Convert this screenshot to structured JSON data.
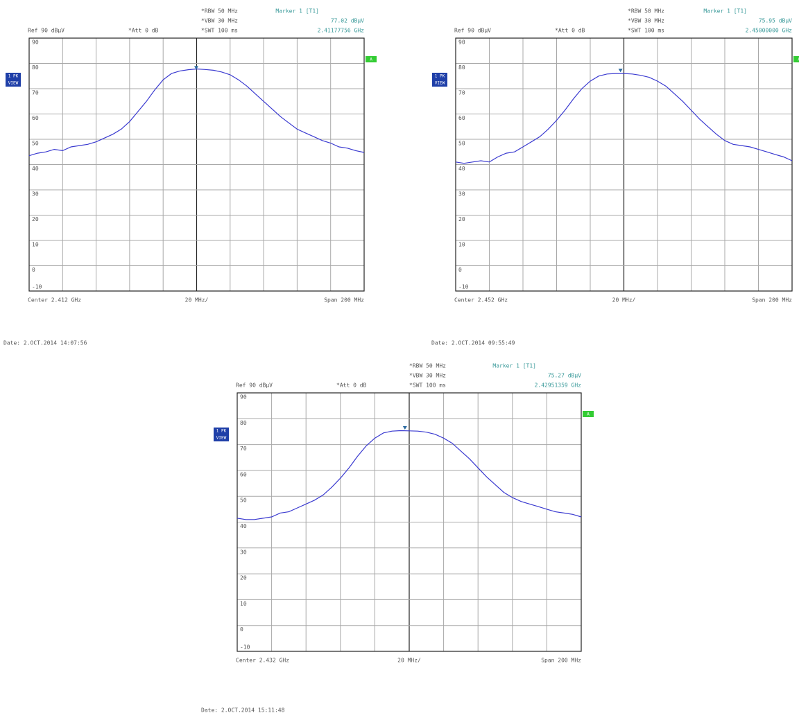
{
  "chart_data": [
    {
      "type": "line",
      "settings": [
        "*RBW 50 MHz",
        "*VBW 30 MHz",
        "*SWT 100 ms"
      ],
      "ref": "Ref  90 dBµV",
      "att": "*Att  0 dB",
      "marker": {
        "name": "Marker 1 [T1]",
        "value": 77.02,
        "value_label": "77.02 dBµV",
        "x": 2.41177756,
        "x_label": "2.41177756 GHz"
      },
      "trace_label": [
        "1 PK",
        "VIEW"
      ],
      "badge": "A",
      "center": "Center  2.412 GHz",
      "div": "20 MHz/",
      "span": "Span  200 MHz",
      "date": "Date: 2.OCT.2014  14:07:56",
      "color": "#3a3ad0",
      "xlim": [
        2.312,
        2.512
      ],
      "ylim": [
        -10,
        90
      ],
      "yticks": [
        90,
        80,
        70,
        60,
        50,
        40,
        30,
        20,
        10,
        0,
        -10
      ],
      "x": [
        2.312,
        2.317,
        2.322,
        2.327,
        2.332,
        2.337,
        2.342,
        2.347,
        2.352,
        2.357,
        2.362,
        2.367,
        2.372,
        2.377,
        2.382,
        2.387,
        2.392,
        2.397,
        2.402,
        2.407,
        2.412,
        2.417,
        2.422,
        2.427,
        2.432,
        2.437,
        2.442,
        2.447,
        2.452,
        2.457,
        2.462,
        2.467,
        2.472,
        2.477,
        2.482,
        2.487,
        2.492,
        2.497,
        2.502,
        2.507,
        2.512
      ],
      "values": [
        43.5,
        44.5,
        45,
        46,
        45.5,
        47,
        47.5,
        48,
        49,
        50.5,
        52,
        54,
        57,
        61,
        65,
        69.5,
        73.5,
        76,
        77,
        77.5,
        77.8,
        77.6,
        77.3,
        76.6,
        75.5,
        73.5,
        71,
        68,
        65,
        62,
        59,
        56.5,
        54,
        52.5,
        51,
        49.5,
        48.5,
        47,
        46.5,
        45.5,
        44.8
      ]
    },
    {
      "type": "line",
      "settings": [
        "*RBW 50 MHz",
        "*VBW 30 MHz",
        "*SWT 100 ms"
      ],
      "ref": "Ref  90 dBµV",
      "att": "*Att  0 dB",
      "marker": {
        "name": "Marker 1 [T1]",
        "value": 75.95,
        "value_label": "75.95 dBµV",
        "x": 2.45,
        "x_label": "2.45000000 GHz"
      },
      "trace_label": [
        "1 PK",
        "VIEW"
      ],
      "badge": "A",
      "center": "Center  2.452 GHz",
      "div": "20 MHz/",
      "span": "Span  200 MHz",
      "date": "Date: 2.OCT.2014  09:55:49",
      "color": "#3a3ad0",
      "xlim": [
        2.352,
        2.552
      ],
      "ylim": [
        -10,
        90
      ],
      "yticks": [
        90,
        80,
        70,
        60,
        50,
        40,
        30,
        20,
        10,
        0,
        -10
      ],
      "x": [
        2.352,
        2.357,
        2.362,
        2.367,
        2.372,
        2.377,
        2.382,
        2.387,
        2.392,
        2.397,
        2.402,
        2.407,
        2.412,
        2.417,
        2.422,
        2.427,
        2.432,
        2.437,
        2.442,
        2.447,
        2.452,
        2.457,
        2.462,
        2.467,
        2.472,
        2.477,
        2.482,
        2.487,
        2.492,
        2.497,
        2.502,
        2.507,
        2.512,
        2.517,
        2.522,
        2.527,
        2.532,
        2.537,
        2.542,
        2.547,
        2.552
      ],
      "values": [
        41,
        40.5,
        41,
        41.5,
        41,
        43,
        44.5,
        45,
        47,
        49,
        51,
        54,
        57.5,
        61.5,
        66,
        70,
        73,
        75,
        75.8,
        76,
        76,
        75.8,
        75.3,
        74.5,
        73,
        71,
        68,
        65,
        61.5,
        58,
        55,
        52,
        49.5,
        48,
        47.5,
        47,
        46,
        45,
        44,
        43,
        41.5
      ]
    },
    {
      "type": "line",
      "settings": [
        "*RBW 50 MHz",
        "*VBW 30 MHz",
        "*SWT 100 ms"
      ],
      "ref": "Ref  90 dBµV",
      "att": "*Att  0 dB",
      "marker": {
        "name": "Marker 1 [T1]",
        "value": 75.27,
        "value_label": "75.27 dBµV",
        "x": 2.42951359,
        "x_label": "2.42951359 GHz"
      },
      "trace_label": [
        "1 PK",
        "VIEW"
      ],
      "badge": "A",
      "center": "Center  2.432 GHz",
      "div": "20 MHz/",
      "span": "Span  200 MHz",
      "date": "Date: 2.OCT.2014  15:11:48",
      "color": "#3a3ad0",
      "xlim": [
        2.332,
        2.532
      ],
      "ylim": [
        -10,
        90
      ],
      "yticks": [
        90,
        80,
        70,
        60,
        50,
        40,
        30,
        20,
        10,
        0,
        -10
      ],
      "x": [
        2.332,
        2.337,
        2.342,
        2.347,
        2.352,
        2.357,
        2.362,
        2.367,
        2.372,
        2.377,
        2.382,
        2.387,
        2.392,
        2.397,
        2.402,
        2.407,
        2.412,
        2.417,
        2.422,
        2.427,
        2.432,
        2.437,
        2.442,
        2.447,
        2.452,
        2.457,
        2.462,
        2.467,
        2.472,
        2.477,
        2.482,
        2.487,
        2.492,
        2.497,
        2.502,
        2.507,
        2.512,
        2.517,
        2.522,
        2.527,
        2.532
      ],
      "values": [
        41.5,
        41,
        41,
        41.5,
        42,
        43.5,
        44,
        45.5,
        47,
        48.5,
        50.5,
        53.5,
        57,
        61,
        65.5,
        69.5,
        72.5,
        74.5,
        75.2,
        75.4,
        75.3,
        75.2,
        74.8,
        74,
        72.5,
        70.5,
        67.5,
        64.5,
        61,
        57.5,
        54.5,
        51.5,
        49.5,
        48,
        47,
        46,
        45,
        44,
        43.5,
        43,
        42
      ]
    }
  ]
}
